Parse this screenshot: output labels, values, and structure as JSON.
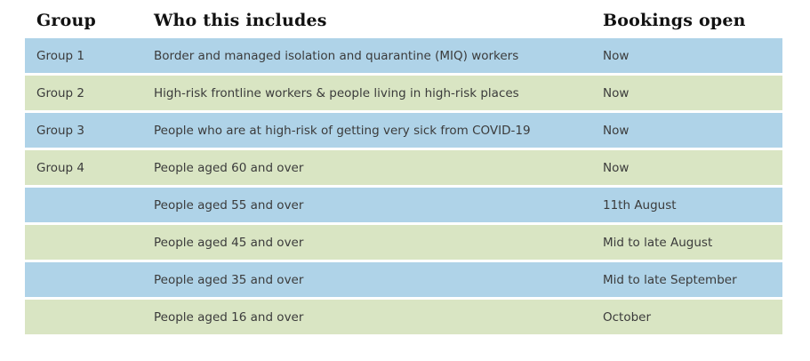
{
  "colors": {
    "background": "#ffffff",
    "row_blue": "#afd3e8",
    "row_green": "#d9e5c3",
    "header_text": "#111111",
    "body_text": "#3b3b3b"
  },
  "table": {
    "headers": [
      "Group",
      "Who this includes",
      "Bookings open"
    ],
    "rows": [
      {
        "group": "Group 1",
        "who": "Border and managed isolation and quarantine (MIQ) workers",
        "open": "Now"
      },
      {
        "group": "Group 2",
        "who": "High-risk frontline workers & people living in high-risk places",
        "open": "Now"
      },
      {
        "group": "Group 3",
        "who": "People who are at high-risk of getting very sick from COVID-19",
        "open": "Now"
      },
      {
        "group": "Group 4",
        "who": "People aged 60 and over",
        "open": "Now"
      },
      {
        "group": "",
        "who": "People aged 55 and over",
        "open": "11th August"
      },
      {
        "group": "",
        "who": "People aged 45 and over",
        "open": "Mid to late August"
      },
      {
        "group": "",
        "who": "People aged 35 and over",
        "open": "Mid to late September"
      },
      {
        "group": "",
        "who": "People aged 16 and over",
        "open": "October"
      }
    ]
  }
}
